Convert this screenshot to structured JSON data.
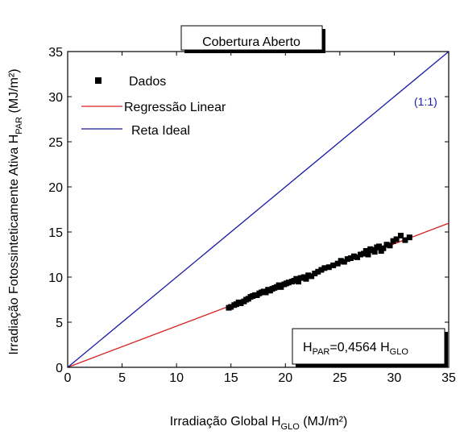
{
  "chart_data": {
    "type": "scatter",
    "title": "Cobertura Aberto",
    "xlabel": {
      "main": "Irradiação Global H",
      "sub": "GLO",
      "unit": " (MJ/m²)"
    },
    "ylabel": {
      "main": "Irradiação Fotossinteticamente Ativa H",
      "sub": "PAR",
      "unit": " (MJ/m²)"
    },
    "xlim": [
      0,
      35
    ],
    "ylim": [
      0,
      35
    ],
    "xticks": [
      0,
      5,
      10,
      15,
      20,
      25,
      30,
      35
    ],
    "yticks": [
      0,
      5,
      10,
      15,
      20,
      25,
      30,
      35
    ],
    "legend": {
      "placement": "top-left",
      "entries": [
        {
          "label": "Dados",
          "kind": "marker",
          "color": "#000000"
        },
        {
          "label": "Regressão Linear",
          "kind": "line",
          "color": "#d42020"
        },
        {
          "label": "Reta Ideal",
          "kind": "line",
          "color": "#1a1aa8"
        }
      ]
    },
    "annotation_ideal": "(1:1)",
    "equation": {
      "lhs": "H",
      "lhs_sub": "PAR",
      "mid": "=0,4564 H",
      "rhs_sub": "GLO"
    },
    "series": [
      {
        "name": "Dados",
        "kind": "scatter",
        "color": "#000000",
        "x": [
          14.8,
          15.0,
          15.3,
          15.5,
          15.7,
          15.9,
          16.2,
          16.4,
          16.6,
          16.8,
          17.0,
          17.2,
          17.4,
          17.6,
          17.8,
          18.0,
          18.2,
          18.4,
          18.6,
          18.8,
          19.0,
          19.2,
          19.4,
          19.6,
          19.9,
          20.1,
          20.3,
          20.6,
          20.8,
          21.0,
          21.2,
          21.4,
          21.7,
          21.9,
          22.1,
          22.4,
          22.7,
          23.0,
          23.3,
          23.6,
          24.0,
          24.4,
          24.8,
          25.1,
          25.4,
          25.7,
          26.0,
          26.3,
          26.6,
          26.9,
          27.2,
          27.4,
          27.6,
          27.8,
          28.0,
          28.2,
          28.4,
          28.6,
          28.8,
          29.0,
          29.3,
          29.6,
          29.9,
          30.2,
          30.6,
          31.0,
          31.4
        ],
        "y": [
          6.6,
          6.7,
          6.9,
          7.0,
          7.2,
          7.1,
          7.3,
          7.5,
          7.6,
          7.8,
          7.9,
          8.0,
          8.0,
          8.2,
          8.3,
          8.4,
          8.3,
          8.6,
          8.5,
          8.7,
          8.8,
          8.9,
          9.1,
          8.9,
          9.2,
          9.3,
          9.4,
          9.5,
          9.6,
          9.8,
          9.5,
          9.9,
          10.0,
          9.8,
          10.2,
          10.1,
          10.4,
          10.6,
          10.8,
          11.0,
          11.1,
          11.3,
          11.5,
          11.8,
          11.7,
          12.0,
          12.1,
          12.3,
          12.2,
          12.5,
          12.6,
          12.9,
          12.5,
          13.1,
          13.0,
          12.8,
          13.3,
          13.4,
          12.9,
          13.2,
          13.6,
          13.5,
          14.0,
          14.2,
          14.6,
          14.1,
          14.4
        ]
      },
      {
        "name": "Regressão Linear",
        "kind": "line",
        "color": "#d42020",
        "x": [
          0,
          35
        ],
        "y": [
          0,
          15.97
        ]
      },
      {
        "name": "Reta Ideal",
        "kind": "line",
        "color": "#1a1aa8",
        "x": [
          0,
          35
        ],
        "y": [
          0,
          35
        ]
      }
    ]
  }
}
